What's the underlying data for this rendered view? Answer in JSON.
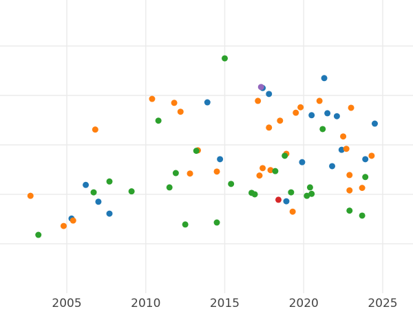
{
  "chart_data": {
    "type": "scatter",
    "title": "",
    "xlabel": "",
    "ylabel": "",
    "xlim": [
      2000.77,
      2026.92
    ],
    "ylim": [
      0,
      5.93
    ],
    "grid": true,
    "x_ticks": [
      2005,
      2010,
      2015,
      2020,
      2025
    ],
    "x_tick_labels": [
      "2005",
      "2010",
      "2015",
      "2020",
      "2025"
    ],
    "y_gridlines": [
      1,
      2,
      3,
      4,
      5
    ],
    "series": [
      {
        "name": "blue",
        "color": "#1f77b4",
        "points": [
          [
            2005.3,
            1.51
          ],
          [
            2006.2,
            2.19
          ],
          [
            2007.0,
            1.85
          ],
          [
            2007.7,
            1.61
          ],
          [
            2013.9,
            3.86
          ],
          [
            2014.7,
            2.71
          ],
          [
            2017.4,
            4.15
          ],
          [
            2017.8,
            4.03
          ],
          [
            2018.9,
            1.86
          ],
          [
            2019.9,
            2.65
          ],
          [
            2020.5,
            3.6
          ],
          [
            2021.3,
            4.35
          ],
          [
            2021.5,
            3.64
          ],
          [
            2022.1,
            3.58
          ],
          [
            2021.8,
            2.57
          ],
          [
            2022.4,
            2.9
          ],
          [
            2023.9,
            2.71
          ],
          [
            2024.5,
            3.43
          ]
        ]
      },
      {
        "name": "orange",
        "color": "#ff7f0e",
        "points": [
          [
            2002.7,
            1.97
          ],
          [
            2004.8,
            1.36
          ],
          [
            2005.4,
            1.47
          ],
          [
            2006.8,
            3.31
          ],
          [
            2010.4,
            3.93
          ],
          [
            2011.8,
            3.85
          ],
          [
            2012.2,
            3.67
          ],
          [
            2012.8,
            2.42
          ],
          [
            2013.3,
            2.89
          ],
          [
            2014.5,
            2.46
          ],
          [
            2017.1,
            3.89
          ],
          [
            2017.2,
            2.38
          ],
          [
            2017.4,
            2.53
          ],
          [
            2017.8,
            3.35
          ],
          [
            2017.9,
            2.49
          ],
          [
            2018.5,
            3.49
          ],
          [
            2018.9,
            2.82
          ],
          [
            2019.3,
            1.65
          ],
          [
            2019.5,
            3.65
          ],
          [
            2019.8,
            3.76
          ],
          [
            2021.0,
            3.89
          ],
          [
            2022.5,
            3.17
          ],
          [
            2022.7,
            2.92
          ],
          [
            2022.9,
            2.39
          ],
          [
            2022.9,
            2.08
          ],
          [
            2023.0,
            3.75
          ],
          [
            2023.7,
            2.13
          ],
          [
            2024.3,
            2.78
          ]
        ]
      },
      {
        "name": "green",
        "color": "#2ca02c",
        "points": [
          [
            2003.2,
            1.18
          ],
          [
            2006.7,
            2.04
          ],
          [
            2007.7,
            2.26
          ],
          [
            2009.1,
            2.06
          ],
          [
            2010.8,
            3.49
          ],
          [
            2011.5,
            2.14
          ],
          [
            2011.9,
            2.43
          ],
          [
            2012.5,
            1.39
          ],
          [
            2013.2,
            2.88
          ],
          [
            2014.5,
            1.43
          ],
          [
            2015.0,
            4.75
          ],
          [
            2015.4,
            2.21
          ],
          [
            2016.7,
            2.03
          ],
          [
            2016.9,
            2.0
          ],
          [
            2018.2,
            2.47
          ],
          [
            2018.8,
            2.78
          ],
          [
            2019.2,
            2.04
          ],
          [
            2020.2,
            1.97
          ],
          [
            2020.4,
            2.14
          ],
          [
            2020.5,
            2.01
          ],
          [
            2021.2,
            3.32
          ],
          [
            2022.9,
            1.67
          ],
          [
            2023.7,
            1.57
          ],
          [
            2023.9,
            2.35
          ]
        ]
      },
      {
        "name": "red",
        "color": "#d62728",
        "points": [
          [
            2018.4,
            1.89
          ]
        ]
      },
      {
        "name": "purple",
        "color": "#9467bd",
        "points": [
          [
            2017.3,
            4.17
          ]
        ]
      }
    ]
  }
}
